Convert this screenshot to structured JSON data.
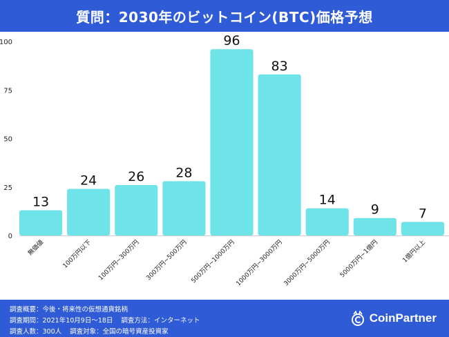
{
  "header": {
    "title": "質問：2030年のビットコイン(BTC)価格予想"
  },
  "colors": {
    "header_bg": "#2f5bd6",
    "bar": "#6ee3e8",
    "text": "#222222"
  },
  "chart_data": {
    "type": "bar",
    "title": "質問：2030年のビットコイン(BTC)価格予想",
    "categories": [
      "無価値",
      "100万円以下",
      "100万円~300万円",
      "300万円~500万円",
      "500万円~1000万円",
      "1000万円~3000万円",
      "3000万円~5000万円",
      "5000万円~1億円",
      "1億円以上"
    ],
    "values": [
      13,
      24,
      26,
      28,
      96,
      83,
      14,
      9,
      7
    ],
    "yticks": [
      "0",
      "25",
      "50",
      "75",
      "100"
    ],
    "ylim": [
      0,
      100
    ],
    "xlabel": "",
    "ylabel": "",
    "grid": false,
    "legend": "none"
  },
  "footer": {
    "line1": {
      "label": "調査概要：",
      "value": "今後・将来性の仮想通貨銘柄"
    },
    "line2": {
      "label": "調査期間：",
      "value": "2021年10月9日～18日",
      "label2": "調査方法：",
      "value2": "インターネット"
    },
    "line3": {
      "label": "調査人数：",
      "value": "300人",
      "label2": "調査対象：",
      "value2": "全国の暗号資産投資家"
    },
    "brand": "CoinPartner",
    "brand_icon": "coin-partner-logo-icon"
  }
}
